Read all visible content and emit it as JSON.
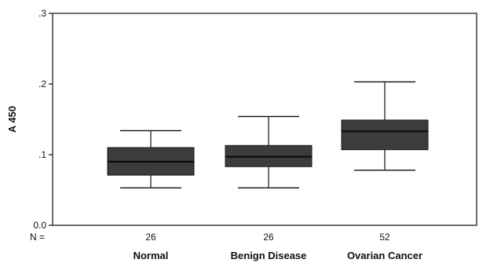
{
  "chart_data": {
    "type": "box",
    "ylabel": "A 450",
    "ylim": [
      0.0,
      0.3
    ],
    "yticks": [
      {
        "value": 0.0,
        "label": "0.0"
      },
      {
        "value": 0.1,
        "label": ".1"
      },
      {
        "value": 0.2,
        "label": ".2"
      },
      {
        "value": 0.3,
        "label": ".3"
      }
    ],
    "n_prefix": "N =",
    "categories": [
      "Normal",
      "Benign Disease",
      "Ovarian Cancer"
    ],
    "n_values": [
      "26",
      "26",
      "52"
    ],
    "boxes": [
      {
        "whisker_low": 0.053,
        "q1": 0.071,
        "median": 0.09,
        "q3": 0.11,
        "whisker_high": 0.134
      },
      {
        "whisker_low": 0.053,
        "q1": 0.083,
        "median": 0.097,
        "q3": 0.113,
        "whisker_high": 0.154
      },
      {
        "whisker_low": 0.078,
        "q1": 0.107,
        "median": 0.133,
        "q3": 0.149,
        "whisker_high": 0.203
      }
    ],
    "box_color": "#3c3c3c",
    "line_color": "#111111",
    "grid": false,
    "legend": "none"
  }
}
